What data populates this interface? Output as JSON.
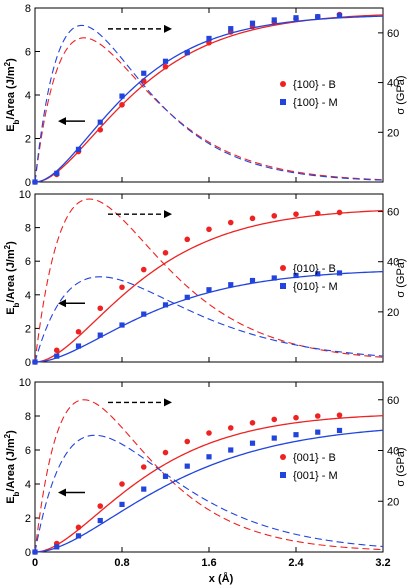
{
  "colors": {
    "B": "#ee2222",
    "M": "#2244dd",
    "axis": "#000000"
  },
  "x_axis": {
    "label_main": "x (",
    "label_unit": "Å",
    "label_end": ")",
    "ticks": [
      "0",
      "0.8",
      "1.6",
      "2.4",
      "3.2"
    ]
  },
  "chart_data": [
    {
      "type": "line",
      "panel": "top",
      "xlim": [
        0,
        3.2
      ],
      "ylim_left": [
        0,
        8
      ],
      "yticks_left": [
        "0",
        "2",
        "4",
        "6",
        "8"
      ],
      "ylim_right": [
        0,
        70
      ],
      "yticks_right": [
        "20",
        "40",
        "60"
      ],
      "ylabel_left_main": "E",
      "ylabel_left_sub": "b",
      "ylabel_left_mid": "/Area (J/m",
      "ylabel_left_sup": "2",
      "ylabel_left_end": ")",
      "ylabel_right": "σ (GPa)",
      "legend_position": "center-right",
      "series": [
        {
          "name": "{100} - B",
          "kind": "B",
          "points_x": [
            0,
            0.2,
            0.4,
            0.6,
            0.8,
            1.0,
            1.2,
            1.4,
            1.6,
            1.8,
            2.0,
            2.2,
            2.4,
            2.6,
            2.8
          ],
          "points_y": [
            0,
            0.35,
            1.4,
            2.4,
            3.55,
            4.65,
            5.3,
            5.95,
            6.4,
            6.9,
            7.15,
            7.35,
            7.5,
            7.6,
            7.7
          ],
          "fit_E_inf": 7.8,
          "fit_lambda": 0.52,
          "stress_peak": 58,
          "stress_x_peak": 0.45
        },
        {
          "name": "{100} - M",
          "kind": "M",
          "points_x": [
            0,
            0.2,
            0.4,
            0.6,
            0.8,
            1.0,
            1.2,
            1.4,
            1.6,
            1.8,
            2.0,
            2.2,
            2.4,
            2.6,
            2.8
          ],
          "points_y": [
            0,
            0.4,
            1.5,
            2.75,
            3.95,
            5.0,
            5.55,
            5.95,
            6.6,
            7.05,
            7.3,
            7.45,
            7.55,
            7.6,
            7.65
          ],
          "fit_E_inf": 7.7,
          "fit_lambda": 0.48,
          "stress_peak": 63,
          "stress_x_peak": 0.43
        }
      ]
    },
    {
      "type": "line",
      "panel": "middle",
      "xlim": [
        0,
        3.2
      ],
      "ylim_left": [
        0,
        10
      ],
      "yticks_left": [
        "0",
        "2",
        "4",
        "6",
        "8",
        "10"
      ],
      "ylim_right": [
        0,
        67
      ],
      "yticks_right": [
        "20",
        "40",
        "60"
      ],
      "ylabel_left_main": "E",
      "ylabel_left_sub": "b",
      "ylabel_left_mid": "/Area (J/m",
      "ylabel_left_sup": "2",
      "ylabel_left_end": ")",
      "ylabel_right": "σ (GPa)",
      "legend_position": "center-right",
      "series": [
        {
          "name": "{010} - B",
          "kind": "B",
          "points_x": [
            0,
            0.2,
            0.4,
            0.6,
            0.8,
            1.0,
            1.2,
            1.4,
            1.6,
            1.8,
            2.0,
            2.2,
            2.4,
            2.6,
            2.8
          ],
          "points_y": [
            0,
            0.7,
            1.8,
            3.2,
            4.45,
            5.5,
            6.5,
            7.3,
            7.9,
            8.3,
            8.55,
            8.7,
            8.8,
            8.85,
            8.9
          ],
          "fit_E_inf": 9.2,
          "fit_lambda": 0.55,
          "stress_peak": 65,
          "stress_x_peak": 0.5
        },
        {
          "name": "{010} - M",
          "kind": "M",
          "points_x": [
            0,
            0.2,
            0.4,
            0.6,
            0.8,
            1.0,
            1.2,
            1.4,
            1.6,
            1.8,
            2.0,
            2.2,
            2.4,
            2.6,
            2.8
          ],
          "points_y": [
            0,
            0.35,
            0.95,
            1.6,
            2.2,
            2.85,
            3.4,
            3.85,
            4.3,
            4.6,
            4.85,
            5.0,
            5.15,
            5.25,
            5.3
          ],
          "fit_E_inf": 5.55,
          "fit_lambda": 0.6,
          "stress_peak": 34,
          "stress_x_peak": 0.6
        }
      ]
    },
    {
      "type": "line",
      "panel": "bottom",
      "xlim": [
        0,
        3.2
      ],
      "ylim_left": [
        0,
        10
      ],
      "yticks_left": [
        "0",
        "2",
        "4",
        "6",
        "8",
        "10"
      ],
      "ylim_right": [
        0,
        67
      ],
      "yticks_right": [
        "20",
        "40",
        "60"
      ],
      "ylabel_left_main": "E",
      "ylabel_left_sub": "b",
      "ylabel_left_mid": "/Area (J/m",
      "ylabel_left_sup": "2",
      "ylabel_left_end": ")",
      "ylabel_right": "σ (GPa)",
      "legend_position": "center-right",
      "series": [
        {
          "name": "{001} - B",
          "kind": "B",
          "points_x": [
            0,
            0.2,
            0.4,
            0.6,
            0.8,
            1.0,
            1.2,
            1.4,
            1.6,
            1.8,
            2.0,
            2.2,
            2.4,
            2.6,
            2.8
          ],
          "points_y": [
            0,
            0.5,
            1.45,
            2.7,
            4.0,
            5.0,
            5.85,
            6.5,
            7.0,
            7.3,
            7.6,
            7.8,
            7.9,
            8.0,
            8.05
          ],
          "fit_E_inf": 8.2,
          "fit_lambda": 0.56,
          "stress_peak": 60,
          "stress_x_peak": 0.45
        },
        {
          "name": "{001} - M",
          "kind": "M",
          "points_x": [
            0,
            0.2,
            0.4,
            0.6,
            0.8,
            1.0,
            1.2,
            1.4,
            1.6,
            1.8,
            2.0,
            2.2,
            2.4,
            2.6,
            2.8
          ],
          "points_y": [
            0,
            0.3,
            0.95,
            1.85,
            2.8,
            3.7,
            4.45,
            5.05,
            5.6,
            6.0,
            6.4,
            6.7,
            6.9,
            7.05,
            7.15
          ],
          "fit_E_inf": 7.6,
          "fit_lambda": 0.7,
          "stress_peak": 46,
          "stress_x_peak": 0.55
        }
      ]
    }
  ]
}
